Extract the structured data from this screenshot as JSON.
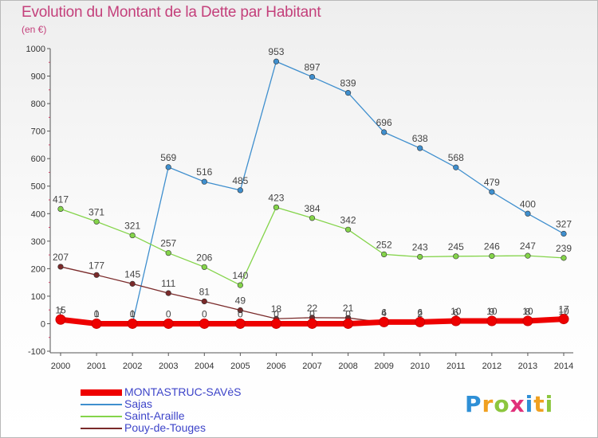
{
  "header": {
    "title": "Evolution du Montant de la Dette par Habitant",
    "subtitle": "(en €)"
  },
  "colors": {
    "title": "#c4407b",
    "legend_text": "#3d44c9",
    "background_top": "#eeeeee"
  },
  "chart_data": {
    "type": "line",
    "title": "Evolution du Montant de la Dette par Habitant",
    "ylabel": "(en €)",
    "ylim": [
      -100,
      1000
    ],
    "yticks": [
      -100,
      0,
      100,
      200,
      300,
      400,
      500,
      600,
      700,
      800,
      900,
      1000
    ],
    "x": [
      2000,
      2001,
      2002,
      2003,
      2004,
      2005,
      2006,
      2007,
      2008,
      2009,
      2010,
      2011,
      2012,
      2013,
      2014
    ],
    "grid": false,
    "legend_position": "bottom-left",
    "series": [
      {
        "name": "Sajas",
        "color": "#3f8fce",
        "values": [
          7,
          1,
          1,
          569,
          516,
          485,
          953,
          897,
          839,
          696,
          638,
          568,
          479,
          400,
          327
        ],
        "labels": [
          "7",
          "1",
          "1",
          "569",
          "516",
          "485",
          "953",
          "897",
          "839",
          "696",
          "638",
          "568",
          "479",
          "400",
          "327"
        ]
      },
      {
        "name": "Saint-Araille",
        "color": "#84d44a",
        "values": [
          417,
          371,
          321,
          257,
          206,
          140,
          423,
          384,
          342,
          252,
          243,
          245,
          246,
          247,
          239
        ],
        "labels": [
          "417",
          "371",
          "321",
          "257",
          "206",
          "140",
          "423",
          "384",
          "342",
          "252",
          "243",
          "245",
          "246",
          "247",
          "239"
        ]
      },
      {
        "name": "Pouy-de-Touges",
        "color": "#7a2a2a",
        "values": [
          207,
          177,
          145,
          111,
          81,
          49,
          18,
          22,
          21,
          4,
          2,
          6,
          9,
          8,
          10
        ],
        "labels": [
          "207",
          "177",
          "145",
          "111",
          "81",
          "49",
          "18",
          "22",
          "21",
          "4",
          "2",
          "6",
          "9",
          "8",
          "10"
        ]
      },
      {
        "name": "MONTASTRUC-SAVèS",
        "color": "#ee0000",
        "values": [
          15,
          0,
          0,
          0,
          0,
          0,
          0,
          0,
          0,
          6,
          6,
          10,
          10,
          10,
          17
        ],
        "labels": [
          "15",
          "0",
          "0",
          "0",
          "0",
          "0",
          "0",
          "0",
          "0",
          "6",
          "6",
          "10",
          "10",
          "10",
          "17"
        ]
      }
    ],
    "legend": [
      {
        "name": "MONTASTRUC-SAVèS",
        "color": "#ee0000"
      },
      {
        "name": "Sajas",
        "color": "#3f8fce"
      },
      {
        "name": "Saint-Araille",
        "color": "#84d44a"
      },
      {
        "name": "Pouy-de-Touges",
        "color": "#7a2a2a"
      }
    ]
  },
  "logo": {
    "text": "Proxiti",
    "letters": [
      "P",
      "r",
      "o",
      "x",
      "i",
      "t",
      "i"
    ],
    "colors": [
      "#2e8fd6",
      "#f0a020",
      "#8cc63e",
      "#e0307a",
      "#2e8fd6",
      "#f0a020",
      "#8cc63e"
    ]
  }
}
